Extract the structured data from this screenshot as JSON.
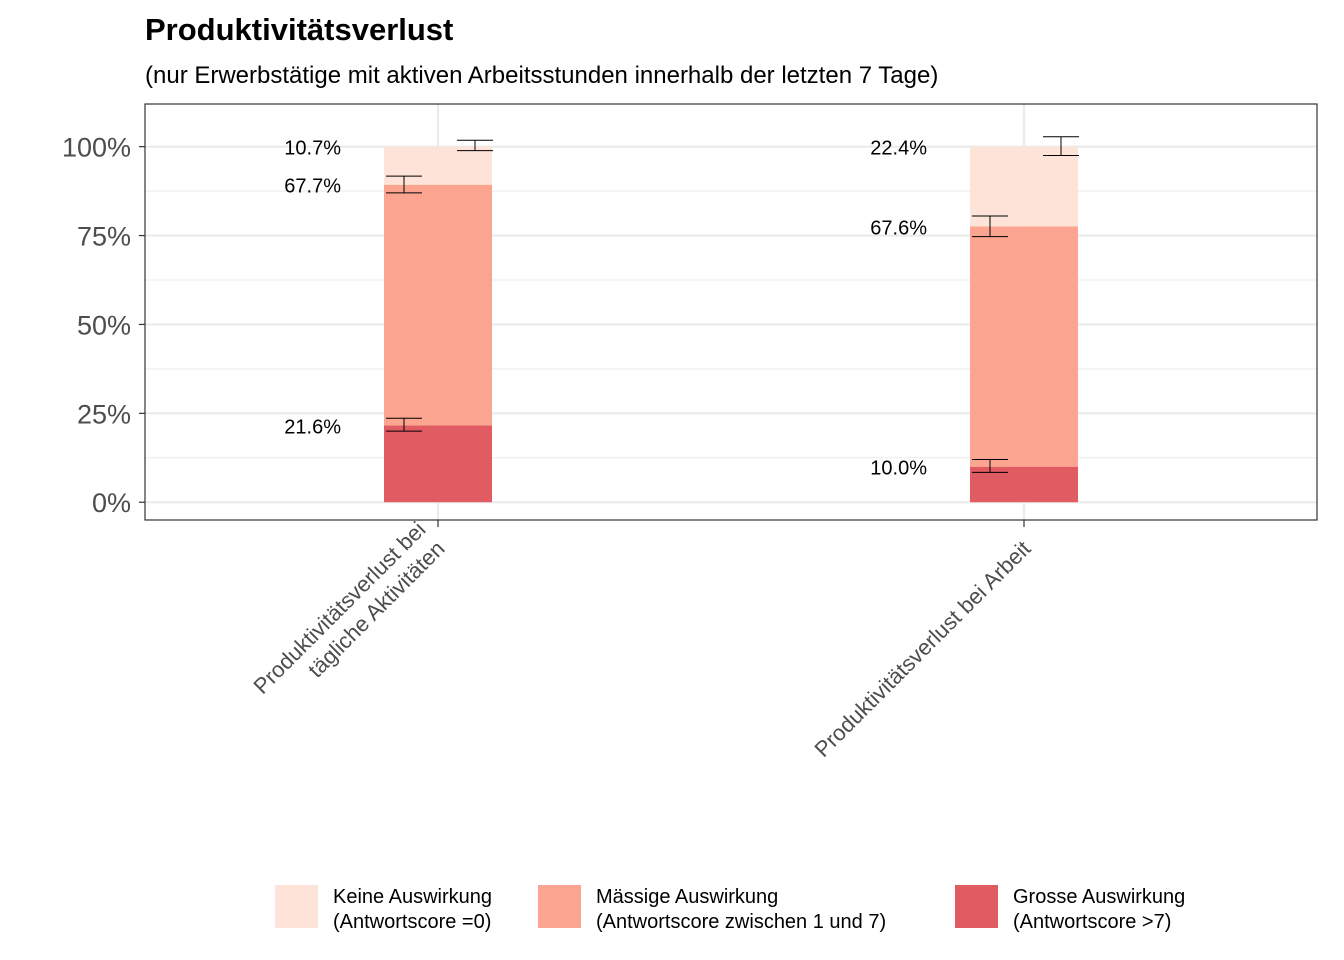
{
  "chart_data": {
    "type": "bar",
    "stacked": true,
    "title": "Produktivitätsverlust",
    "subtitle": "(nur Erwerbstätige mit aktiven Arbeitsstunden innerhalb der letzten 7 Tage)",
    "xlabel": "",
    "ylabel": "",
    "ylim": [
      -5,
      112
    ],
    "yticks": [
      0,
      25,
      50,
      75,
      100
    ],
    "ytick_labels": [
      "0%",
      "25%",
      "50%",
      "75%",
      "100%"
    ],
    "grid": true,
    "legend_position": "bottom",
    "categories": [
      [
        "Produktivitätsverlust bei",
        "tägliche Aktivitäten"
      ],
      [
        "Produktivitätsverlust bei Arbeit"
      ]
    ],
    "series": [
      {
        "name": "Grosse Auswirkung (Antwortscore >7)",
        "legend_lines": [
          "Grosse Auswirkung",
          "(Antwortscore >7)"
        ],
        "color": "#e05c62",
        "values": [
          21.6,
          10.0
        ],
        "labels": [
          "21.6%",
          "10.0%"
        ],
        "error_bars": [
          [
            20.0,
            23.6
          ],
          [
            8.4,
            12.0
          ]
        ]
      },
      {
        "name": "Mässige Auswirkung (Antwortscore zwischen 1 und 7)",
        "legend_lines": [
          "Mässige Auswirkung",
          "(Antwortscore zwischen 1 und 7)"
        ],
        "color": "#fba48f",
        "values": [
          67.7,
          67.6
        ],
        "labels": [
          "67.7%",
          "67.6%"
        ],
        "error_bars": [
          [
            87.0,
            91.7
          ],
          [
            74.7,
            80.5
          ]
        ]
      },
      {
        "name": "Keine Auswirkung (Antwortscore =0)",
        "legend_lines": [
          "Keine Auswirkung",
          "(Antwortscore =0)"
        ],
        "color": "#fee3d8",
        "values": [
          10.7,
          22.4
        ],
        "labels": [
          "10.7%",
          "22.4%"
        ],
        "error_bars": [
          [
            98.9,
            101.8
          ],
          [
            97.5,
            102.8
          ]
        ]
      }
    ],
    "legend_order": [
      2,
      1,
      0
    ]
  }
}
